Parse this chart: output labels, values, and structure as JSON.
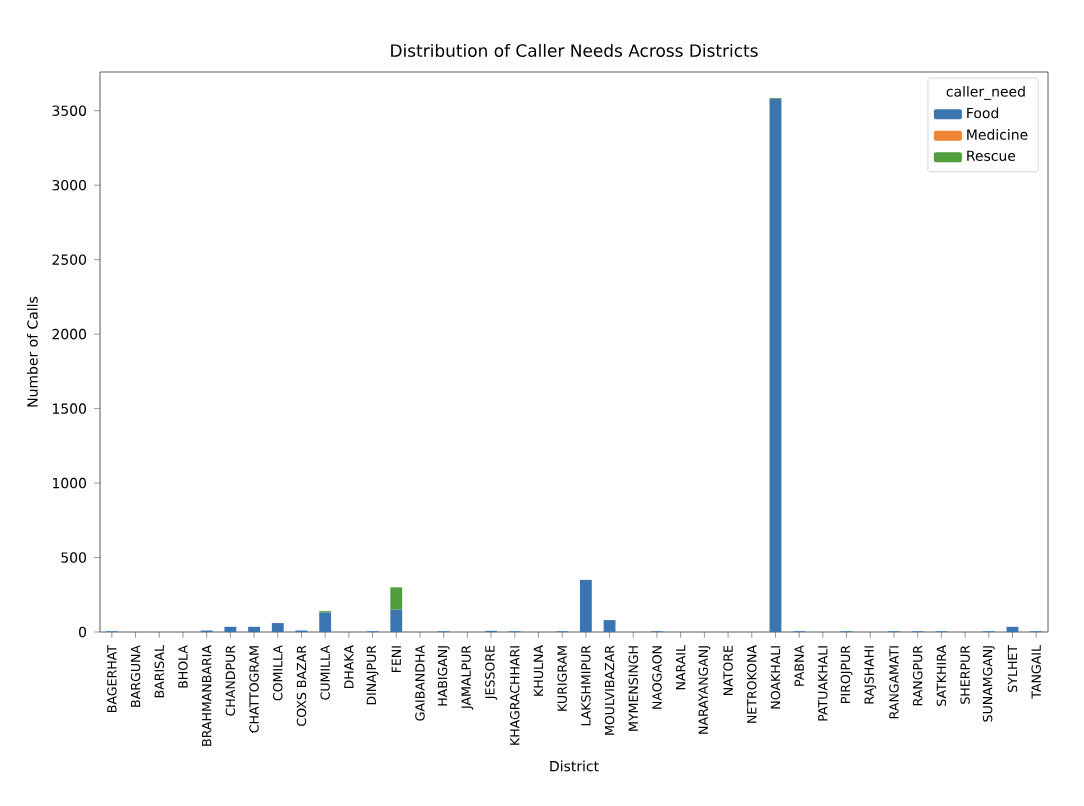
{
  "chart_data": {
    "type": "bar",
    "title": "Distribution of Caller Needs Across Districts",
    "xlabel": "District",
    "ylabel": "Number of Calls",
    "legend_title": "caller_need",
    "categories": [
      "BAGERHAT",
      "BARGUNA",
      "BARISAL",
      "BHOLA",
      "BRAHMANBARIA",
      "CHANDPUR",
      "CHATTOGRAM",
      "COMILLA",
      "COXS BAZAR",
      "CUMILLA",
      "DHAKA",
      "DINAJPUR",
      "FENI",
      "GAIBANDHA",
      "HABIGANJ",
      "JAMALPUR",
      "JESSORE",
      "KHAGRACHHARI",
      "KHULNA",
      "KURIGRAM",
      "LAKSHMIPUR",
      "MOULVIBAZAR",
      "MYMENSINGH",
      "NAOGAON",
      "NARAIL",
      "NARAYANGANJ",
      "NATORE",
      "NETROKONA",
      "NOAKHALI",
      "PABNA",
      "PATUAKHALI",
      "PIROJPUR",
      "RAJSHAHI",
      "RANGAMATI",
      "RANGPUR",
      "SATKHIRA",
      "SHERPUR",
      "SUNAMGANJ",
      "SYLHET",
      "TANGAIL"
    ],
    "series": [
      {
        "name": "Food",
        "color": "#3a75af",
        "values": [
          5,
          0,
          0,
          0,
          10,
          35,
          35,
          60,
          10,
          130,
          0,
          5,
          150,
          0,
          5,
          0,
          8,
          5,
          0,
          5,
          350,
          80,
          0,
          5,
          0,
          0,
          0,
          0,
          3580,
          5,
          0,
          5,
          0,
          5,
          5,
          5,
          0,
          5,
          35,
          5
        ]
      },
      {
        "name": "Medicine",
        "color": "#ef8636",
        "values": [
          0,
          0,
          0,
          0,
          0,
          0,
          0,
          0,
          0,
          0,
          0,
          0,
          0,
          0,
          0,
          0,
          0,
          0,
          0,
          0,
          0,
          0,
          0,
          0,
          0,
          0,
          0,
          0,
          0,
          0,
          0,
          0,
          0,
          0,
          0,
          0,
          0,
          0,
          0,
          0
        ]
      },
      {
        "name": "Rescue",
        "color": "#519e3e",
        "values": [
          0,
          0,
          0,
          0,
          0,
          0,
          0,
          0,
          0,
          10,
          0,
          0,
          150,
          0,
          0,
          0,
          0,
          0,
          0,
          0,
          0,
          0,
          0,
          0,
          0,
          0,
          0,
          0,
          5,
          0,
          0,
          0,
          0,
          0,
          0,
          0,
          0,
          0,
          0,
          0
        ]
      }
    ],
    "stacked": true,
    "ylim": [
      0,
      3760
    ],
    "yticks": [
      0,
      500,
      1000,
      1500,
      2000,
      2500,
      3000,
      3500
    ],
    "grid": false,
    "legend": "top right"
  }
}
